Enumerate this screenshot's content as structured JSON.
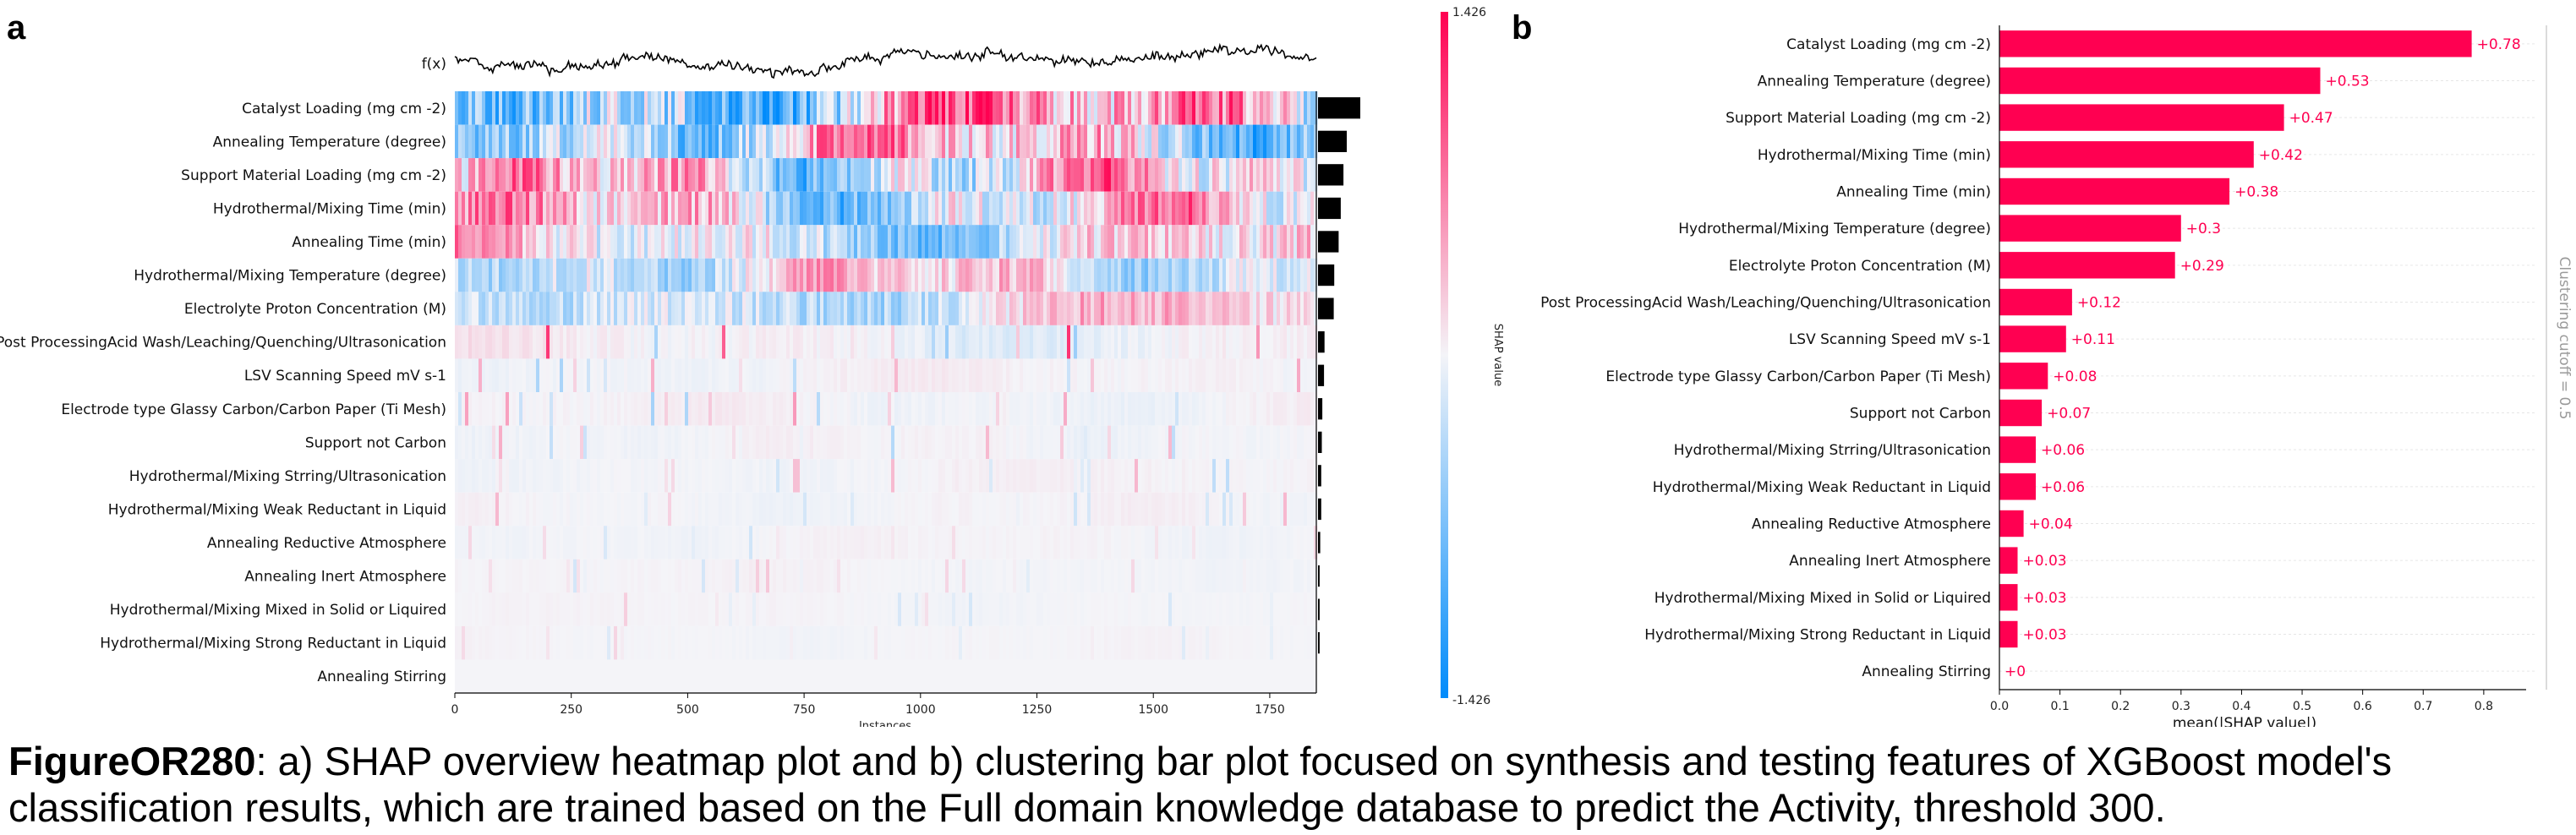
{
  "panel_a": {
    "letter": "a"
  },
  "panel_b": {
    "letter": "b"
  },
  "caption": {
    "label": "FigureOR280",
    "text": ": a) SHAP overview heatmap plot and b) clustering bar plot focused on synthesis and testing features of XGBoost model's classification results, which are trained based on the Full domain knowledge database to predict the Activity, threshold 300."
  },
  "colors": {
    "positive": "#ff0051",
    "negative": "#008bfb",
    "bar": "#000000",
    "grid": "#e6e6e6"
  },
  "chart_data": [
    {
      "type": "heatmap",
      "title": "",
      "fx_label": "f(x)",
      "xlabel": "Instances",
      "x_ticks": [
        0,
        250,
        500,
        750,
        1000,
        1250,
        1500,
        1750
      ],
      "n_instances": 1850,
      "colorbar": {
        "label": "SHAP value",
        "max_label": "1.426",
        "min_label": "-1.426",
        "vmin": -1.426,
        "vmax": 1.426
      },
      "features": [
        {
          "name": "Catalyst Loading (mg cm -2)",
          "importance": 0.78,
          "intensity": 1.0
        },
        {
          "name": "Annealing Temperature (degree)",
          "importance": 0.53,
          "intensity": 0.8
        },
        {
          "name": "Support Material Loading (mg cm -2)",
          "importance": 0.47,
          "intensity": 0.75
        },
        {
          "name": "Hydrothermal/Mixing Time (min)",
          "importance": 0.42,
          "intensity": 0.7
        },
        {
          "name": "Annealing Time (min)",
          "importance": 0.38,
          "intensity": 0.6
        },
        {
          "name": "Hydrothermal/Mixing Temperature (degree)",
          "importance": 0.3,
          "intensity": 0.5
        },
        {
          "name": "Electrolyte Proton Concentration (M)",
          "importance": 0.29,
          "intensity": 0.45
        },
        {
          "name": "Post ProcessingAcid Wash/Leaching/Quenching/Ultrasonication",
          "importance": 0.12,
          "intensity": 0.3
        },
        {
          "name": "LSV Scanning Speed mV s-1",
          "importance": 0.11,
          "intensity": 0.15
        },
        {
          "name": "Electrode type Glassy Carbon/Carbon Paper (Ti Mesh)",
          "importance": 0.08,
          "intensity": 0.15
        },
        {
          "name": "Support not Carbon",
          "importance": 0.07,
          "intensity": 0.12
        },
        {
          "name": "Hydrothermal/Mixing Strring/Ultrasonication",
          "importance": 0.06,
          "intensity": 0.1
        },
        {
          "name": "Hydrothermal/Mixing Weak Reductant in Liquid",
          "importance": 0.06,
          "intensity": 0.1
        },
        {
          "name": "Annealing Reductive Atmosphere",
          "importance": 0.04,
          "intensity": 0.08
        },
        {
          "name": "Annealing Inert Atmosphere",
          "importance": 0.03,
          "intensity": 0.07
        },
        {
          "name": "Hydrothermal/Mixing Mixed in Solid or Liquired",
          "importance": 0.03,
          "intensity": 0.06
        },
        {
          "name": "Hydrothermal/Mixing Strong Reductant in Liquid",
          "importance": 0.03,
          "intensity": 0.05
        },
        {
          "name": "Annealing Stirring",
          "importance": 0.0,
          "intensity": 0.0
        }
      ]
    },
    {
      "type": "bar",
      "orientation": "horizontal",
      "title": "",
      "xlabel": "mean(|SHAP value|)",
      "xlim": [
        0,
        0.87
      ],
      "x_ticks": [
        0.0,
        0.1,
        0.2,
        0.3,
        0.4,
        0.5,
        0.6,
        0.7,
        0.8
      ],
      "side_label": "Clustering cutoff = 0.5",
      "categories": [
        "Catalyst Loading (mg cm -2)",
        "Annealing Temperature (degree)",
        "Support Material Loading (mg cm -2)",
        "Hydrothermal/Mixing Time (min)",
        "Annealing Time (min)",
        "Hydrothermal/Mixing Temperature (degree)",
        "Electrolyte Proton Concentration (M)",
        "Post ProcessingAcid Wash/Leaching/Quenching/Ultrasonication",
        "LSV Scanning Speed mV s-1",
        "Electrode type Glassy Carbon/Carbon Paper (Ti Mesh)",
        "Support not Carbon",
        "Hydrothermal/Mixing Strring/Ultrasonication",
        "Hydrothermal/Mixing Weak Reductant in Liquid",
        "Annealing Reductive Atmosphere",
        "Annealing Inert Atmosphere",
        "Hydrothermal/Mixing Mixed in Solid or Liquired",
        "Hydrothermal/Mixing Strong Reductant in Liquid",
        "Annealing Stirring"
      ],
      "values": [
        0.78,
        0.53,
        0.47,
        0.42,
        0.38,
        0.3,
        0.29,
        0.12,
        0.11,
        0.08,
        0.07,
        0.06,
        0.06,
        0.04,
        0.03,
        0.03,
        0.03,
        0.0
      ],
      "value_labels": [
        "+0.78",
        "+0.53",
        "+0.47",
        "+0.42",
        "+0.38",
        "+0.3",
        "+0.29",
        "+0.12",
        "+0.11",
        "+0.08",
        "+0.07",
        "+0.06",
        "+0.06",
        "+0.04",
        "+0.03",
        "+0.03",
        "+0.03",
        "+0"
      ]
    }
  ]
}
